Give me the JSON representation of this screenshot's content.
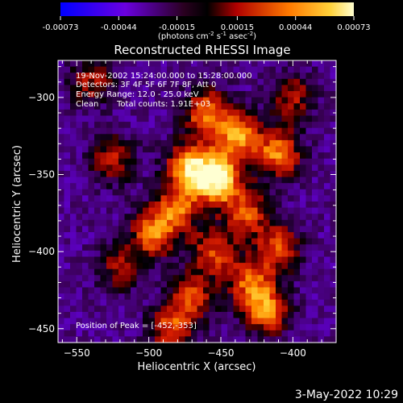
{
  "colorbar": {
    "tick_labels": [
      "-0.00073",
      "-0.00044",
      "-0.00015",
      "0.00015",
      "0.00044",
      "0.00073"
    ],
    "tick_values": [
      -0.00073,
      -0.00044,
      -0.00015,
      0.00015,
      0.00044,
      0.00073
    ],
    "range": [
      -0.00073,
      0.00073
    ],
    "units_label": "(photons cm",
    "units_sup1": "-2",
    "units_mid1": " s",
    "units_sup2": "-1",
    "units_mid2": " asec",
    "units_sup3": "-2",
    "units_end": ")",
    "colors": [
      "#0000ff",
      "#8a00c8",
      "#000000",
      "#d42000",
      "#ff9a00",
      "#ffffc0"
    ]
  },
  "chart_data": {
    "type": "heatmap",
    "title": "Reconstructed RHESSI Image",
    "xlabel": "Heliocentric X (arcsec)",
    "ylabel": "Heliocentric Y (arcsec)",
    "xlim": [
      -563,
      -370
    ],
    "ylim": [
      -459,
      -276
    ],
    "x_ticks": [
      -550,
      -500,
      -450,
      -400
    ],
    "y_ticks": [
      -300,
      -350,
      -400,
      -450
    ],
    "x_tick_labels": [
      "-550",
      "-500",
      "-450",
      "-400"
    ],
    "y_tick_labels": [
      "-300",
      "-350",
      "-400",
      "-450"
    ],
    "peak": [
      -452,
      -353
    ],
    "sources": [
      {
        "x": -452,
        "y": -353,
        "value": 0.00073
      },
      {
        "x": -472,
        "y": -345,
        "value": 0.00052
      },
      {
        "x": -438,
        "y": -325,
        "value": 0.00045
      },
      {
        "x": -410,
        "y": -337,
        "value": 0.00042
      },
      {
        "x": -460,
        "y": -310,
        "value": 0.0004
      },
      {
        "x": -497,
        "y": -388,
        "value": 0.00038
      },
      {
        "x": -480,
        "y": -372,
        "value": 0.00032
      },
      {
        "x": -432,
        "y": -375,
        "value": 0.0003
      },
      {
        "x": -455,
        "y": -400,
        "value": 0.00028
      },
      {
        "x": -418,
        "y": -438,
        "value": 0.00042
      },
      {
        "x": -430,
        "y": -420,
        "value": 0.0003
      },
      {
        "x": -410,
        "y": -398,
        "value": 0.0003
      },
      {
        "x": -470,
        "y": -430,
        "value": 0.00026
      },
      {
        "x": -485,
        "y": -450,
        "value": 0.00028
      },
      {
        "x": -525,
        "y": -340,
        "value": 0.0002
      },
      {
        "x": -540,
        "y": -290,
        "value": 0.00015
      },
      {
        "x": -520,
        "y": -410,
        "value": 0.00014
      },
      {
        "x": -400,
        "y": -300,
        "value": 0.00016
      }
    ],
    "annotations": [
      "19-Nov-2002 15:24:00.000 to 15:28:00.000",
      "Detectors: 3F 4F 5F 6F 7F 8F, Att 0",
      "Energy Range: 12.0 - 25.0 keV",
      "Clean",
      "Total counts: 1.91E+03",
      "Position of Peak = [-452,-353]"
    ]
  },
  "footer": {
    "timestamp": "3-May-2022 10:29"
  }
}
